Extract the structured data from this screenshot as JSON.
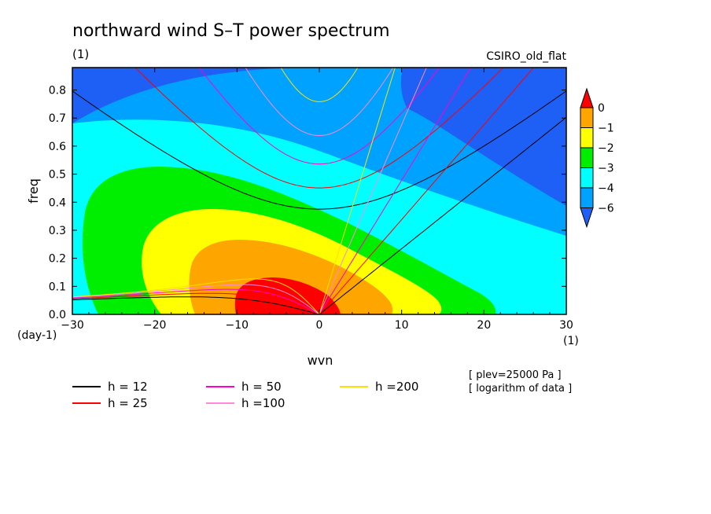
{
  "chart_data": {
    "type": "heatmap",
    "title": "northward wind S–T power spectrum",
    "units_label": "(1)",
    "model_label": "CSIRO_old_flat",
    "xlabel": "wvn",
    "ylabel": "freq",
    "x_unit": "(1)",
    "y_unit": "(day-1)",
    "xlim": [
      -30,
      30
    ],
    "ylim": [
      0,
      0.88
    ],
    "x_ticks": [
      -30,
      -20,
      -10,
      0,
      10,
      20,
      30
    ],
    "y_ticks": [
      0.0,
      0.1,
      0.2,
      0.3,
      0.4,
      0.5,
      0.6,
      0.7,
      0.8
    ],
    "colorbar": {
      "levels": [
        -6,
        -4,
        -3,
        -2,
        -1,
        0
      ],
      "tick_labels": [
        "0",
        "−1",
        "−2",
        "−3",
        "−4",
        "−6"
      ],
      "colors": [
        "#1e5ff5",
        "#00a2ff",
        "#00ffff",
        "#00ee00",
        "#ffff00",
        "#ffa500",
        "#ff0000"
      ]
    },
    "notes": [
      "[ plev=25000 Pa ]",
      "[ logarithm of data ]"
    ],
    "dispersion_curves": [
      {
        "name": "h = 12",
        "h": 12,
        "color": "#000000"
      },
      {
        "name": "h = 25",
        "h": 25,
        "color": "#ff0000"
      },
      {
        "name": "h = 50",
        "h": 50,
        "color": "#ff00cc"
      },
      {
        "name": "h =100",
        "h": 100,
        "color": "#ff88dd"
      },
      {
        "name": "h =200",
        "h": 200,
        "color": "#ffe000"
      }
    ]
  }
}
